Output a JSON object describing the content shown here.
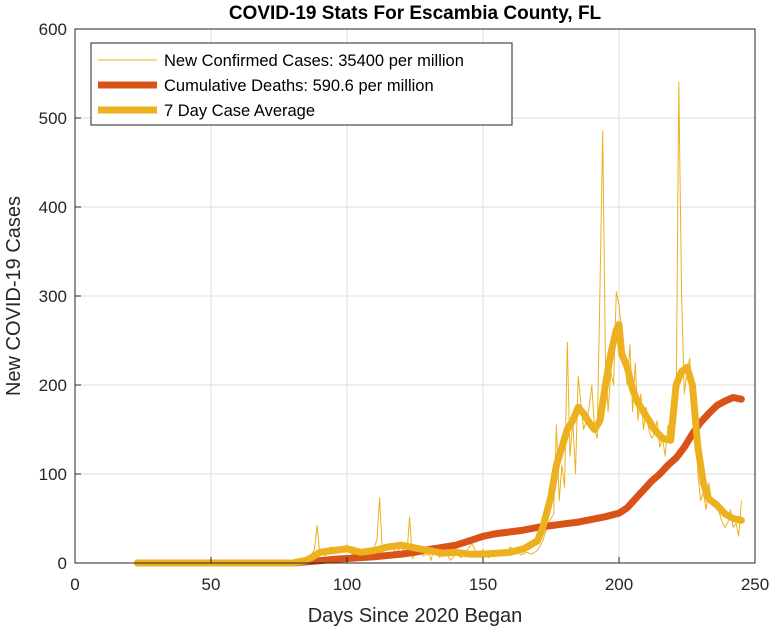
{
  "chart_data": {
    "type": "line",
    "title": "COVID-19 Stats For Escambia County, FL",
    "xlabel": "Days Since 2020 Began",
    "ylabel": "New COVID-19 Cases",
    "xlim": [
      0,
      250
    ],
    "ylim": [
      0,
      600
    ],
    "xticks": [
      0,
      50,
      100,
      150,
      200,
      250
    ],
    "yticks": [
      0,
      100,
      200,
      300,
      400,
      500,
      600
    ],
    "grid": true,
    "legend_position": "top-left",
    "series": [
      {
        "name": "New Confirmed Cases: 35400 per million",
        "color": "#EDB120",
        "style": "thin",
        "x": [
          23,
          30,
          40,
          50,
          60,
          70,
          80,
          84,
          86,
          88,
          89,
          90,
          91,
          92,
          94,
          96,
          98,
          100,
          102,
          104,
          106,
          108,
          110,
          111,
          112,
          113,
          114,
          116,
          118,
          120,
          122,
          123,
          124,
          126,
          128,
          130,
          131,
          132,
          134,
          136,
          138,
          140,
          142,
          144,
          146,
          148,
          150,
          152,
          154,
          156,
          158,
          160,
          162,
          164,
          166,
          168,
          170,
          172,
          174,
          176,
          177,
          178,
          179,
          180,
          181,
          182,
          183,
          184,
          185,
          186,
          187,
          188,
          189,
          190,
          191,
          192,
          193,
          194,
          195,
          196,
          197,
          198,
          199,
          200,
          201,
          202,
          203,
          204,
          205,
          206,
          207,
          208,
          209,
          210,
          211,
          212,
          213,
          214,
          215,
          216,
          217,
          218,
          219,
          220,
          221,
          222,
          223,
          224,
          225,
          226,
          227,
          228,
          229,
          230,
          231,
          232,
          233,
          234,
          235,
          236,
          237,
          238,
          239,
          240,
          241,
          242,
          243,
          244,
          245
        ],
        "y": [
          0,
          0,
          0,
          0,
          0,
          0,
          0,
          2,
          5,
          15,
          42,
          10,
          12,
          8,
          18,
          12,
          16,
          20,
          9,
          14,
          16,
          12,
          18,
          26,
          73,
          12,
          15,
          20,
          12,
          18,
          9,
          52,
          5,
          14,
          8,
          10,
          3,
          20,
          6,
          14,
          3,
          10,
          6,
          14,
          22,
          8,
          15,
          6,
          10,
          14,
          8,
          18,
          14,
          9,
          12,
          10,
          14,
          25,
          45,
          55,
          155,
          70,
          110,
          85,
          248,
          120,
          160,
          100,
          210,
          180,
          150,
          160,
          175,
          200,
          150,
          140,
          310,
          485,
          230,
          170,
          215,
          200,
          305,
          290,
          260,
          230,
          200,
          245,
          170,
          225,
          160,
          190,
          150,
          175,
          150,
          140,
          145,
          160,
          130,
          140,
          120,
          155,
          140,
          140,
          165,
          540,
          300,
          190,
          215,
          230,
          185,
          170,
          100,
          70,
          80,
          60,
          90,
          70,
          65,
          70,
          55,
          45,
          40,
          45,
          60,
          40,
          45,
          30,
          70
        ]
      },
      {
        "name": "Cumulative Deaths: 590.6 per million",
        "color": "#D95319",
        "style": "thick",
        "x": [
          23,
          50,
          80,
          88,
          95,
          100,
          110,
          120,
          125,
          130,
          140,
          145,
          150,
          155,
          160,
          165,
          170,
          175,
          180,
          185,
          190,
          195,
          200,
          203,
          206,
          209,
          212,
          215,
          218,
          221,
          224,
          227,
          230,
          233,
          236,
          239,
          242,
          245
        ],
        "y": [
          0,
          0,
          0,
          2,
          4,
          5,
          7,
          10,
          12,
          15,
          20,
          25,
          30,
          33,
          35,
          37,
          40,
          42,
          44,
          46,
          49,
          52,
          56,
          62,
          72,
          82,
          92,
          100,
          110,
          118,
          130,
          145,
          158,
          168,
          177,
          182,
          186,
          184
        ]
      },
      {
        "name": "7 Day Case Average",
        "color": "#EDB120",
        "style": "thick",
        "x": [
          23,
          50,
          80,
          85,
          88,
          90,
          95,
          100,
          105,
          110,
          115,
          120,
          125,
          130,
          135,
          140,
          145,
          150,
          155,
          160,
          165,
          170,
          172,
          175,
          177,
          179,
          181,
          183,
          185,
          187,
          189,
          191,
          193,
          195,
          197,
          199,
          200,
          201,
          203,
          205,
          207,
          210,
          213,
          216,
          219,
          221,
          223,
          225,
          227,
          229,
          231,
          233,
          236,
          239,
          242,
          245
        ],
        "y": [
          0,
          0,
          0,
          3,
          8,
          12,
          14,
          16,
          12,
          14,
          18,
          20,
          17,
          14,
          11,
          12,
          10,
          10,
          11,
          12,
          16,
          25,
          40,
          75,
          110,
          130,
          150,
          160,
          175,
          168,
          158,
          150,
          160,
          200,
          235,
          262,
          268,
          235,
          220,
          195,
          180,
          165,
          150,
          140,
          138,
          200,
          215,
          220,
          200,
          130,
          90,
          72,
          65,
          55,
          50,
          48
        ]
      }
    ]
  }
}
